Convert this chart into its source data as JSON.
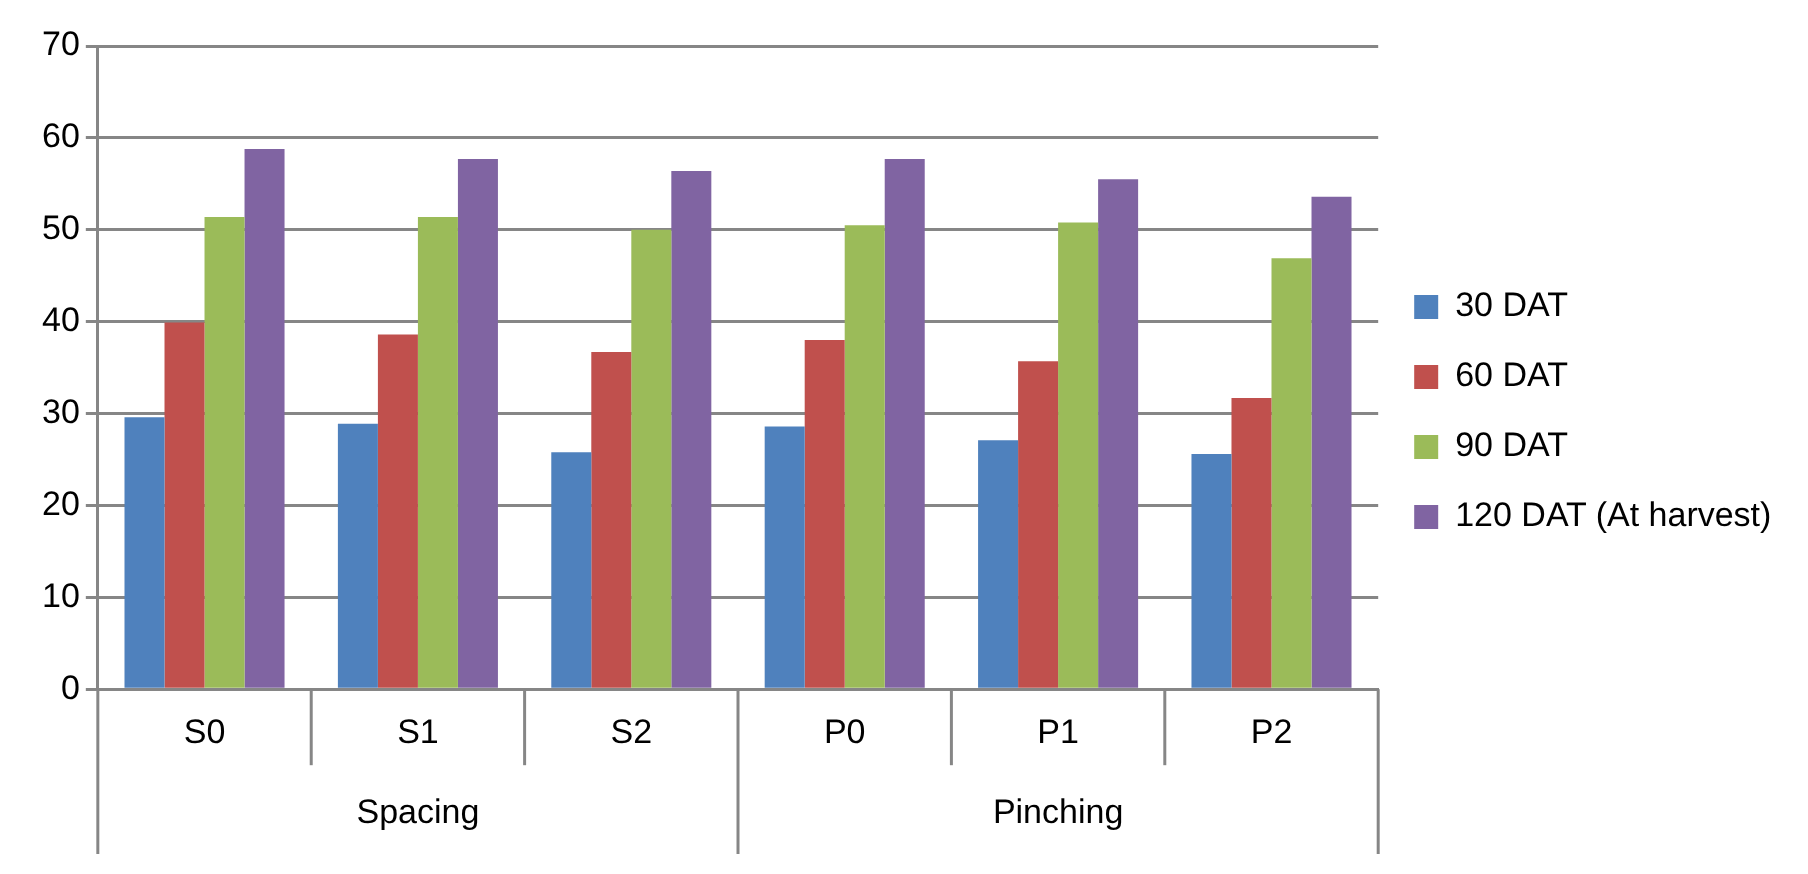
{
  "chart_data": {
    "type": "bar",
    "categories": [
      "S0",
      "S1",
      "S2",
      "P0",
      "P1",
      "P2"
    ],
    "series": [
      {
        "name": "30 DAT",
        "color": "#4f81bd",
        "values": [
          29.6,
          28.9,
          25.8,
          28.6,
          27.1,
          25.6
        ]
      },
      {
        "name": "60 DAT",
        "color": "#c0504d",
        "values": [
          39.9,
          38.6,
          36.7,
          38.0,
          35.7,
          31.7
        ]
      },
      {
        "name": "90 DAT",
        "color": "#9bbb59",
        "values": [
          51.4,
          51.4,
          50.0,
          50.5,
          50.8,
          46.9
        ]
      },
      {
        "name": "120 DAT (At harvest)",
        "color": "#8064a2",
        "values": [
          58.8,
          57.7,
          56.4,
          57.7,
          55.5,
          53.6
        ]
      }
    ],
    "ylim": [
      0,
      70
    ],
    "yticks": [
      0,
      10,
      20,
      30,
      40,
      50,
      60,
      70
    ],
    "grid": "y",
    "legend": "right",
    "annotations": [
      "Spacing",
      "Pinching"
    ]
  }
}
